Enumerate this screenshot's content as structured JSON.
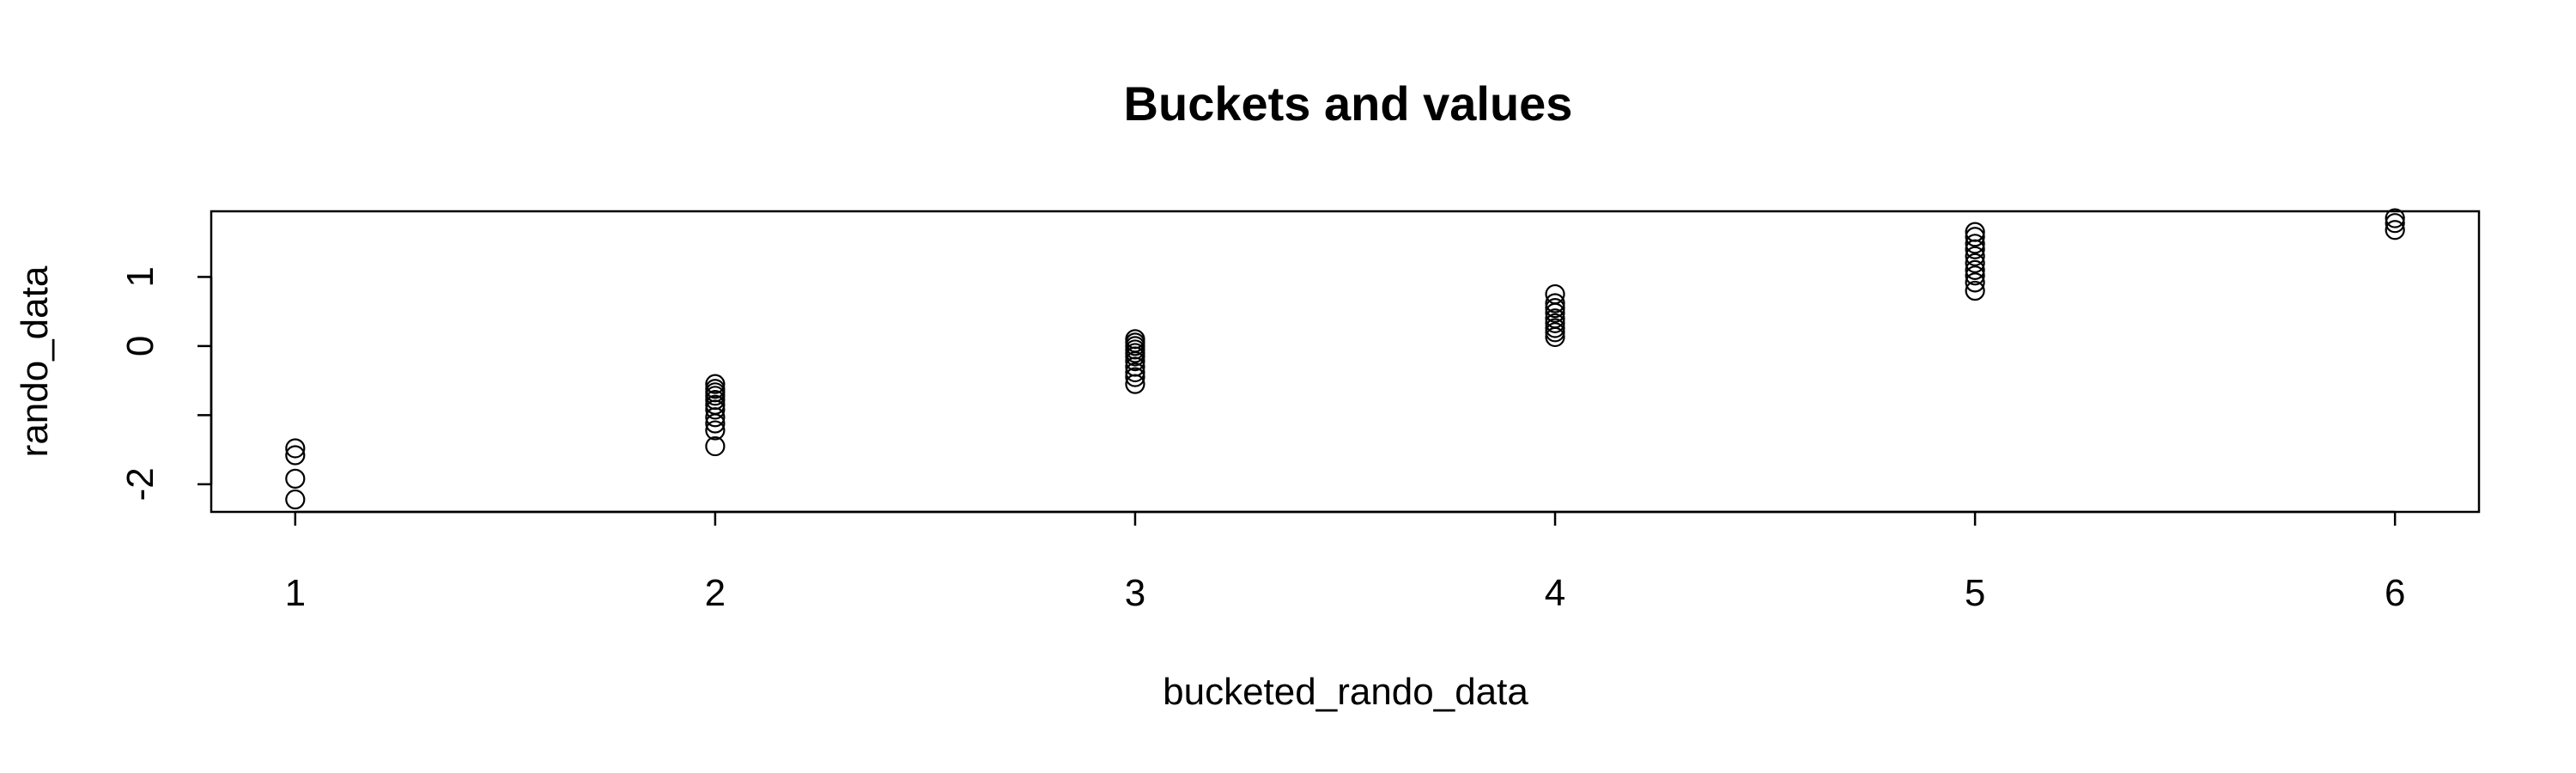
{
  "chart_data": {
    "type": "scatter",
    "title": "Buckets and values",
    "xlabel": "bucketed_rando_data",
    "ylabel": "rando_data",
    "x_ticks": [
      "1",
      "2",
      "3",
      "4",
      "5",
      "6"
    ],
    "y_ticks": [
      "-2",
      "0",
      "1"
    ],
    "xlim": [
      0.8,
      6.2
    ],
    "ylim": [
      -2.4,
      1.95
    ],
    "grid": false,
    "legend": "none",
    "marker": "open-circle",
    "colors": {
      "points": "#000000",
      "axes": "#000000",
      "background": "#ffffff"
    },
    "points": [
      {
        "x": 1,
        "y": -1.48
      },
      {
        "x": 1,
        "y": -1.58
      },
      {
        "x": 1,
        "y": -1.92
      },
      {
        "x": 1,
        "y": -2.22
      },
      {
        "x": 2,
        "y": -0.55
      },
      {
        "x": 2,
        "y": -0.62
      },
      {
        "x": 2,
        "y": -0.67
      },
      {
        "x": 2,
        "y": -0.72
      },
      {
        "x": 2,
        "y": -0.78
      },
      {
        "x": 2,
        "y": -0.85
      },
      {
        "x": 2,
        "y": -0.92
      },
      {
        "x": 2,
        "y": -1.03
      },
      {
        "x": 2,
        "y": -1.12
      },
      {
        "x": 2,
        "y": -1.22
      },
      {
        "x": 2,
        "y": -1.45
      },
      {
        "x": 3,
        "y": 0.1
      },
      {
        "x": 3,
        "y": 0.05
      },
      {
        "x": 3,
        "y": 0.0
      },
      {
        "x": 3,
        "y": -0.05
      },
      {
        "x": 3,
        "y": -0.1
      },
      {
        "x": 3,
        "y": -0.15
      },
      {
        "x": 3,
        "y": -0.22
      },
      {
        "x": 3,
        "y": -0.3
      },
      {
        "x": 3,
        "y": -0.38
      },
      {
        "x": 3,
        "y": -0.45
      },
      {
        "x": 3,
        "y": -0.55
      },
      {
        "x": 4,
        "y": 0.75
      },
      {
        "x": 4,
        "y": 0.62
      },
      {
        "x": 4,
        "y": 0.55
      },
      {
        "x": 4,
        "y": 0.48
      },
      {
        "x": 4,
        "y": 0.4
      },
      {
        "x": 4,
        "y": 0.33
      },
      {
        "x": 4,
        "y": 0.26
      },
      {
        "x": 4,
        "y": 0.2
      },
      {
        "x": 4,
        "y": 0.13
      },
      {
        "x": 5,
        "y": 1.65
      },
      {
        "x": 5,
        "y": 1.58
      },
      {
        "x": 5,
        "y": 1.48
      },
      {
        "x": 5,
        "y": 1.4
      },
      {
        "x": 5,
        "y": 1.3
      },
      {
        "x": 5,
        "y": 1.2
      },
      {
        "x": 5,
        "y": 1.1
      },
      {
        "x": 5,
        "y": 1.02
      },
      {
        "x": 5,
        "y": 0.92
      },
      {
        "x": 5,
        "y": 0.8
      },
      {
        "x": 6,
        "y": 1.85
      },
      {
        "x": 6,
        "y": 1.78
      },
      {
        "x": 6,
        "y": 1.68
      }
    ]
  }
}
